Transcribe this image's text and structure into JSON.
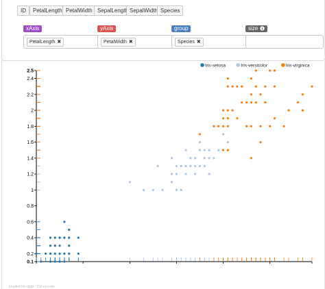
{
  "fields": [
    "ID",
    "PetalLength",
    "PetalWidth",
    "SepalLength",
    "SepalWidth",
    "Species"
  ],
  "slots": [
    {
      "label": "xAxis",
      "value": "PetalLength",
      "color": "#9b4dca"
    },
    {
      "label": "yAxis",
      "value": "PetalWidth",
      "color": "#d9534f"
    },
    {
      "label": "group",
      "value": "Species",
      "color": "#4a7fc1"
    },
    {
      "label": "size",
      "value": "",
      "color": "#666666"
    }
  ],
  "remove_symbol": "✖",
  "info_icon": "info-circle-icon",
  "colors": {
    "setosa": "#1f77b4",
    "versicolor": "#aec7e8",
    "virginica": "#ff7f0e"
  },
  "chart_data": {
    "type": "scatter",
    "xlabel": "",
    "ylabel": "",
    "xlim": [
      1,
      6.9
    ],
    "ylim": [
      0.1,
      2.5
    ],
    "x_ticks": [
      "1",
      "2",
      "3",
      "4",
      "5",
      "6",
      "6.9"
    ],
    "y_ticks": [
      "0.1",
      "0.2",
      "0.4",
      "0.6",
      "0.8",
      "1",
      "1.2",
      "1.4",
      "1.6",
      "1.8",
      "2",
      "2.2",
      "2.4",
      "2.5"
    ],
    "legend_position": "top-right",
    "grid": false,
    "series": [
      {
        "name": "Iris-setosa",
        "points": [
          [
            1.0,
            0.2
          ],
          [
            1.1,
            0.1
          ],
          [
            1.2,
            0.2
          ],
          [
            1.3,
            0.2
          ],
          [
            1.4,
            0.2
          ],
          [
            1.5,
            0.2
          ],
          [
            1.6,
            0.2
          ],
          [
            1.7,
            0.2
          ],
          [
            1.9,
            0.2
          ],
          [
            1.3,
            0.3
          ],
          [
            1.4,
            0.3
          ],
          [
            1.5,
            0.3
          ],
          [
            1.7,
            0.3
          ],
          [
            1.3,
            0.4
          ],
          [
            1.4,
            0.4
          ],
          [
            1.5,
            0.4
          ],
          [
            1.6,
            0.4
          ],
          [
            1.7,
            0.4
          ],
          [
            1.9,
            0.4
          ],
          [
            1.3,
            0.1
          ],
          [
            1.4,
            0.1
          ],
          [
            1.5,
            0.1
          ],
          [
            1.6,
            0.1
          ],
          [
            1.6,
            0.6
          ],
          [
            1.7,
            0.5
          ],
          [
            1.5,
            0.4
          ]
        ]
      },
      {
        "name": "Iris-versicolor",
        "points": [
          [
            3.0,
            1.1
          ],
          [
            3.3,
            1.0
          ],
          [
            3.5,
            1.0
          ],
          [
            3.7,
            1.0
          ],
          [
            3.9,
            1.1
          ],
          [
            3.6,
            1.3
          ],
          [
            3.9,
            1.2
          ],
          [
            3.9,
            1.4
          ],
          [
            4.0,
            1.0
          ],
          [
            4.0,
            1.2
          ],
          [
            4.0,
            1.3
          ],
          [
            4.1,
            1.0
          ],
          [
            4.1,
            1.3
          ],
          [
            4.2,
            1.2
          ],
          [
            4.2,
            1.3
          ],
          [
            4.2,
            1.5
          ],
          [
            4.3,
            1.3
          ],
          [
            4.4,
            1.2
          ],
          [
            4.4,
            1.3
          ],
          [
            4.4,
            1.4
          ],
          [
            4.5,
            1.3
          ],
          [
            4.5,
            1.5
          ],
          [
            4.6,
            1.3
          ],
          [
            4.6,
            1.4
          ],
          [
            4.6,
            1.5
          ],
          [
            4.7,
            1.2
          ],
          [
            4.7,
            1.4
          ],
          [
            4.7,
            1.5
          ],
          [
            4.8,
            1.4
          ],
          [
            4.8,
            1.8
          ],
          [
            4.9,
            1.5
          ],
          [
            5.0,
            1.7
          ],
          [
            5.1,
            1.6
          ],
          [
            4.1,
            1.0
          ],
          [
            4.5,
            1.6
          ],
          [
            4.3,
            1.4
          ]
        ]
      },
      {
        "name": "Iris-virginica",
        "points": [
          [
            4.5,
            1.7
          ],
          [
            4.8,
            1.8
          ],
          [
            4.9,
            1.8
          ],
          [
            5.0,
            1.5
          ],
          [
            5.0,
            1.9
          ],
          [
            5.0,
            2.0
          ],
          [
            5.1,
            1.5
          ],
          [
            5.1,
            1.8
          ],
          [
            5.1,
            1.9
          ],
          [
            5.1,
            2.0
          ],
          [
            5.1,
            2.3
          ],
          [
            5.1,
            2.4
          ],
          [
            5.2,
            2.0
          ],
          [
            5.2,
            2.3
          ],
          [
            5.3,
            1.9
          ],
          [
            5.3,
            2.3
          ],
          [
            5.4,
            2.1
          ],
          [
            5.4,
            2.3
          ],
          [
            5.5,
            1.8
          ],
          [
            5.5,
            2.1
          ],
          [
            5.6,
            1.4
          ],
          [
            5.6,
            1.8
          ],
          [
            5.6,
            2.1
          ],
          [
            5.6,
            2.2
          ],
          [
            5.6,
            2.4
          ],
          [
            5.7,
            2.1
          ],
          [
            5.7,
            2.3
          ],
          [
            5.7,
            2.5
          ],
          [
            5.8,
            1.6
          ],
          [
            5.8,
            1.8
          ],
          [
            5.8,
            2.2
          ],
          [
            5.9,
            2.1
          ],
          [
            5.9,
            2.3
          ],
          [
            6.0,
            1.8
          ],
          [
            6.0,
            2.5
          ],
          [
            6.1,
            1.9
          ],
          [
            6.1,
            2.3
          ],
          [
            6.1,
            2.5
          ],
          [
            6.3,
            1.8
          ],
          [
            6.4,
            2.0
          ],
          [
            6.6,
            2.1
          ],
          [
            6.7,
            2.0
          ],
          [
            6.7,
            2.2
          ],
          [
            6.9,
            2.3
          ],
          [
            5.5,
            1.8
          ],
          [
            5.0,
            1.8
          ]
        ]
      }
    ]
  },
  "footer_text": "Loaded Iris data · 150 records"
}
